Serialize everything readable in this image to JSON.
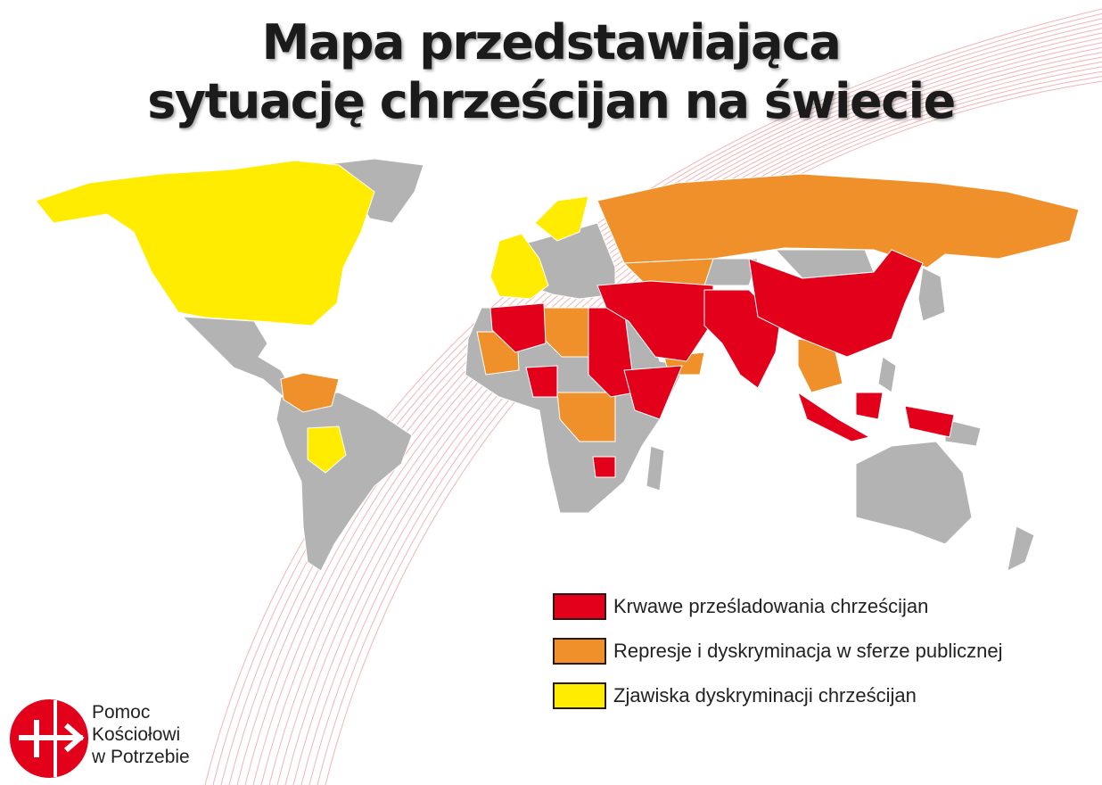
{
  "title": {
    "line1": "Mapa przedstawiająca",
    "line2": "sytuację chrześcijan na świecie"
  },
  "colors": {
    "bloody": "#e2001a",
    "repression": "#f0902a",
    "discrimination": "#ffec00",
    "other": "#b3b3b3",
    "lines": "#e8787a"
  },
  "legend": [
    {
      "label": "Krwawe prześladowania chrześcijan",
      "color": "#e2001a"
    },
    {
      "label": "Represje i dyskryminacja w sferze publicznej",
      "color": "#f0902a"
    },
    {
      "label": "Zjawiska dyskryminacji chrześcijan",
      "color": "#ffec00"
    }
  ],
  "logo": {
    "line1": "Pomoc",
    "line2": "Kościołowi",
    "line3": "w Potrzebie",
    "icon": "cross-arrow-logo-icon"
  }
}
